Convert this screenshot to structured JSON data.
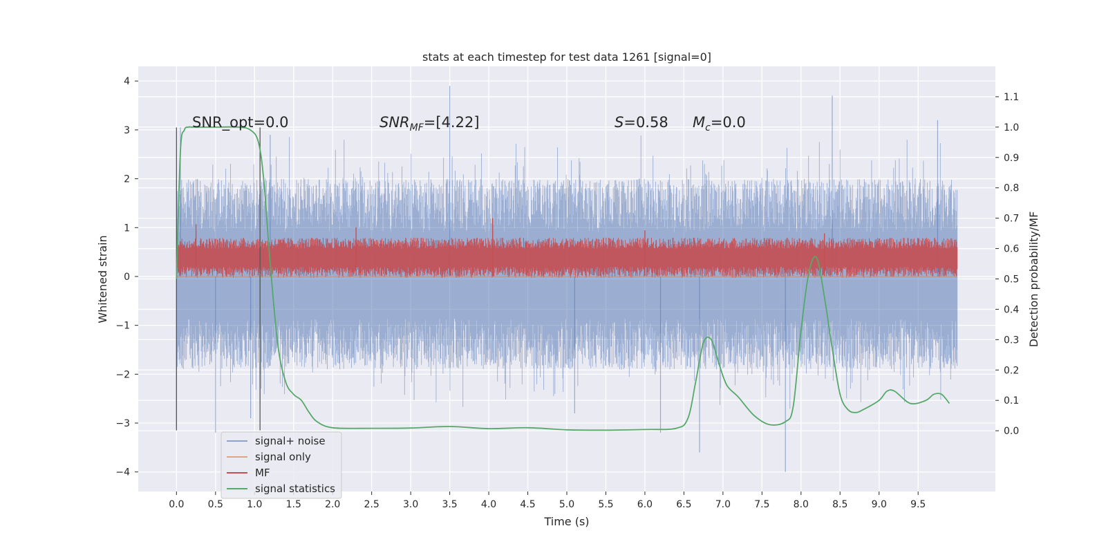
{
  "chart_data": {
    "type": "line",
    "title": "stats at each timestep for test data 1261 [signal=0]",
    "xlabel": "Time (s)",
    "ylabel": "Whitened strain",
    "y2label": "Detection probability/MF",
    "xlim": [
      -0.49,
      10.49
    ],
    "ylim": [
      -4.4,
      4.3
    ],
    "y2lim": [
      -0.2,
      1.2
    ],
    "xticks": [
      "0.0",
      "0.5",
      "1.0",
      "1.5",
      "2.0",
      "2.5",
      "3.0",
      "3.5",
      "4.0",
      "4.5",
      "5.0",
      "5.5",
      "6.0",
      "6.5",
      "7.0",
      "7.5",
      "8.0",
      "8.5",
      "9.0",
      "9.5"
    ],
    "yticks": [
      "−4",
      "−3",
      "−2",
      "−1",
      "0",
      "1",
      "2",
      "3",
      "4"
    ],
    "y2ticks": [
      "0.0",
      "0.1",
      "0.2",
      "0.3",
      "0.4",
      "0.5",
      "0.6",
      "0.7",
      "0.8",
      "0.9",
      "1.0",
      "1.1"
    ],
    "grid": true,
    "colors": {
      "background": "#EAEAF2",
      "signal_noise": "#4C72B0",
      "signal_only": "#DD8452",
      "mf": "#C44E52",
      "stats": "#55A868",
      "vline": "#555555"
    },
    "annotations": {
      "snr_opt": "SNR_opt=0.0",
      "snr_mf_base": "SNR",
      "snr_mf_sub": "MF",
      "snr_mf_value": "=[4.22]",
      "s_base": "S",
      "s_value": "=0.58",
      "mc_base": "M",
      "mc_sub": "c",
      "mc_value": "=0.0"
    },
    "window_markers": [
      0.0,
      1.07
    ],
    "legend": {
      "location": "lower-left",
      "entries": [
        "signal+ noise",
        "signal only",
        "MF",
        "signal statistics"
      ]
    },
    "series": [
      {
        "name": "signal+ noise",
        "kind": "band",
        "x": [
          0.0,
          10.0
        ],
        "typical_lower": -1.9,
        "typical_upper": 2.0,
        "peaks": [
          [
            0.0,
            -3.1
          ],
          [
            0.05,
            3.05
          ],
          [
            0.5,
            -3.2
          ],
          [
            0.95,
            -2.9
          ],
          [
            1.07,
            -2.6
          ],
          [
            1.2,
            2.9
          ],
          [
            3.5,
            3.9
          ],
          [
            5.1,
            -2.8
          ],
          [
            6.2,
            -3.2
          ],
          [
            6.7,
            -3.6
          ],
          [
            7.8,
            -4.0
          ],
          [
            8.4,
            3.7
          ],
          [
            9.75,
            3.2
          ]
        ]
      },
      {
        "name": "signal only",
        "kind": "line",
        "x": [
          0.0,
          10.0
        ],
        "y": [
          0.0,
          0.0
        ]
      },
      {
        "name": "MF",
        "kind": "band",
        "axis": "y2",
        "x": [
          0.0,
          10.0
        ],
        "typical_lower": 0.51,
        "typical_upper": 0.63,
        "peaks": [
          [
            0.25,
            0.68
          ],
          [
            2.3,
            0.67
          ],
          [
            4.05,
            0.7
          ],
          [
            6.0,
            0.66
          ],
          [
            8.3,
            0.65
          ]
        ]
      },
      {
        "name": "signal statistics",
        "kind": "line",
        "axis": "y2",
        "x": [
          0.0,
          0.05,
          0.1,
          0.15,
          0.2,
          0.3,
          0.5,
          0.8,
          0.95,
          1.05,
          1.12,
          1.2,
          1.3,
          1.4,
          1.5,
          1.6,
          1.7,
          1.8,
          2.0,
          2.5,
          3.0,
          3.5,
          4.0,
          4.5,
          5.0,
          5.5,
          6.0,
          6.4,
          6.55,
          6.65,
          6.75,
          6.85,
          6.95,
          7.05,
          7.2,
          7.4,
          7.6,
          7.8,
          7.9,
          8.0,
          8.1,
          8.2,
          8.3,
          8.4,
          8.5,
          8.6,
          8.7,
          8.8,
          9.0,
          9.1,
          9.2,
          9.4,
          9.6,
          9.7,
          9.8,
          9.9
        ],
        "y": [
          0.5,
          0.92,
          0.99,
          1.0,
          1.0,
          1.0,
          1.0,
          1.0,
          0.99,
          0.95,
          0.82,
          0.55,
          0.28,
          0.16,
          0.12,
          0.1,
          0.06,
          0.03,
          0.01,
          0.008,
          0.009,
          0.014,
          0.007,
          0.01,
          0.003,
          0.002,
          0.004,
          0.008,
          0.04,
          0.16,
          0.29,
          0.3,
          0.22,
          0.15,
          0.11,
          0.05,
          0.02,
          0.03,
          0.08,
          0.33,
          0.52,
          0.57,
          0.44,
          0.27,
          0.12,
          0.07,
          0.06,
          0.07,
          0.1,
          0.13,
          0.13,
          0.09,
          0.1,
          0.12,
          0.12,
          0.09
        ]
      }
    ]
  }
}
